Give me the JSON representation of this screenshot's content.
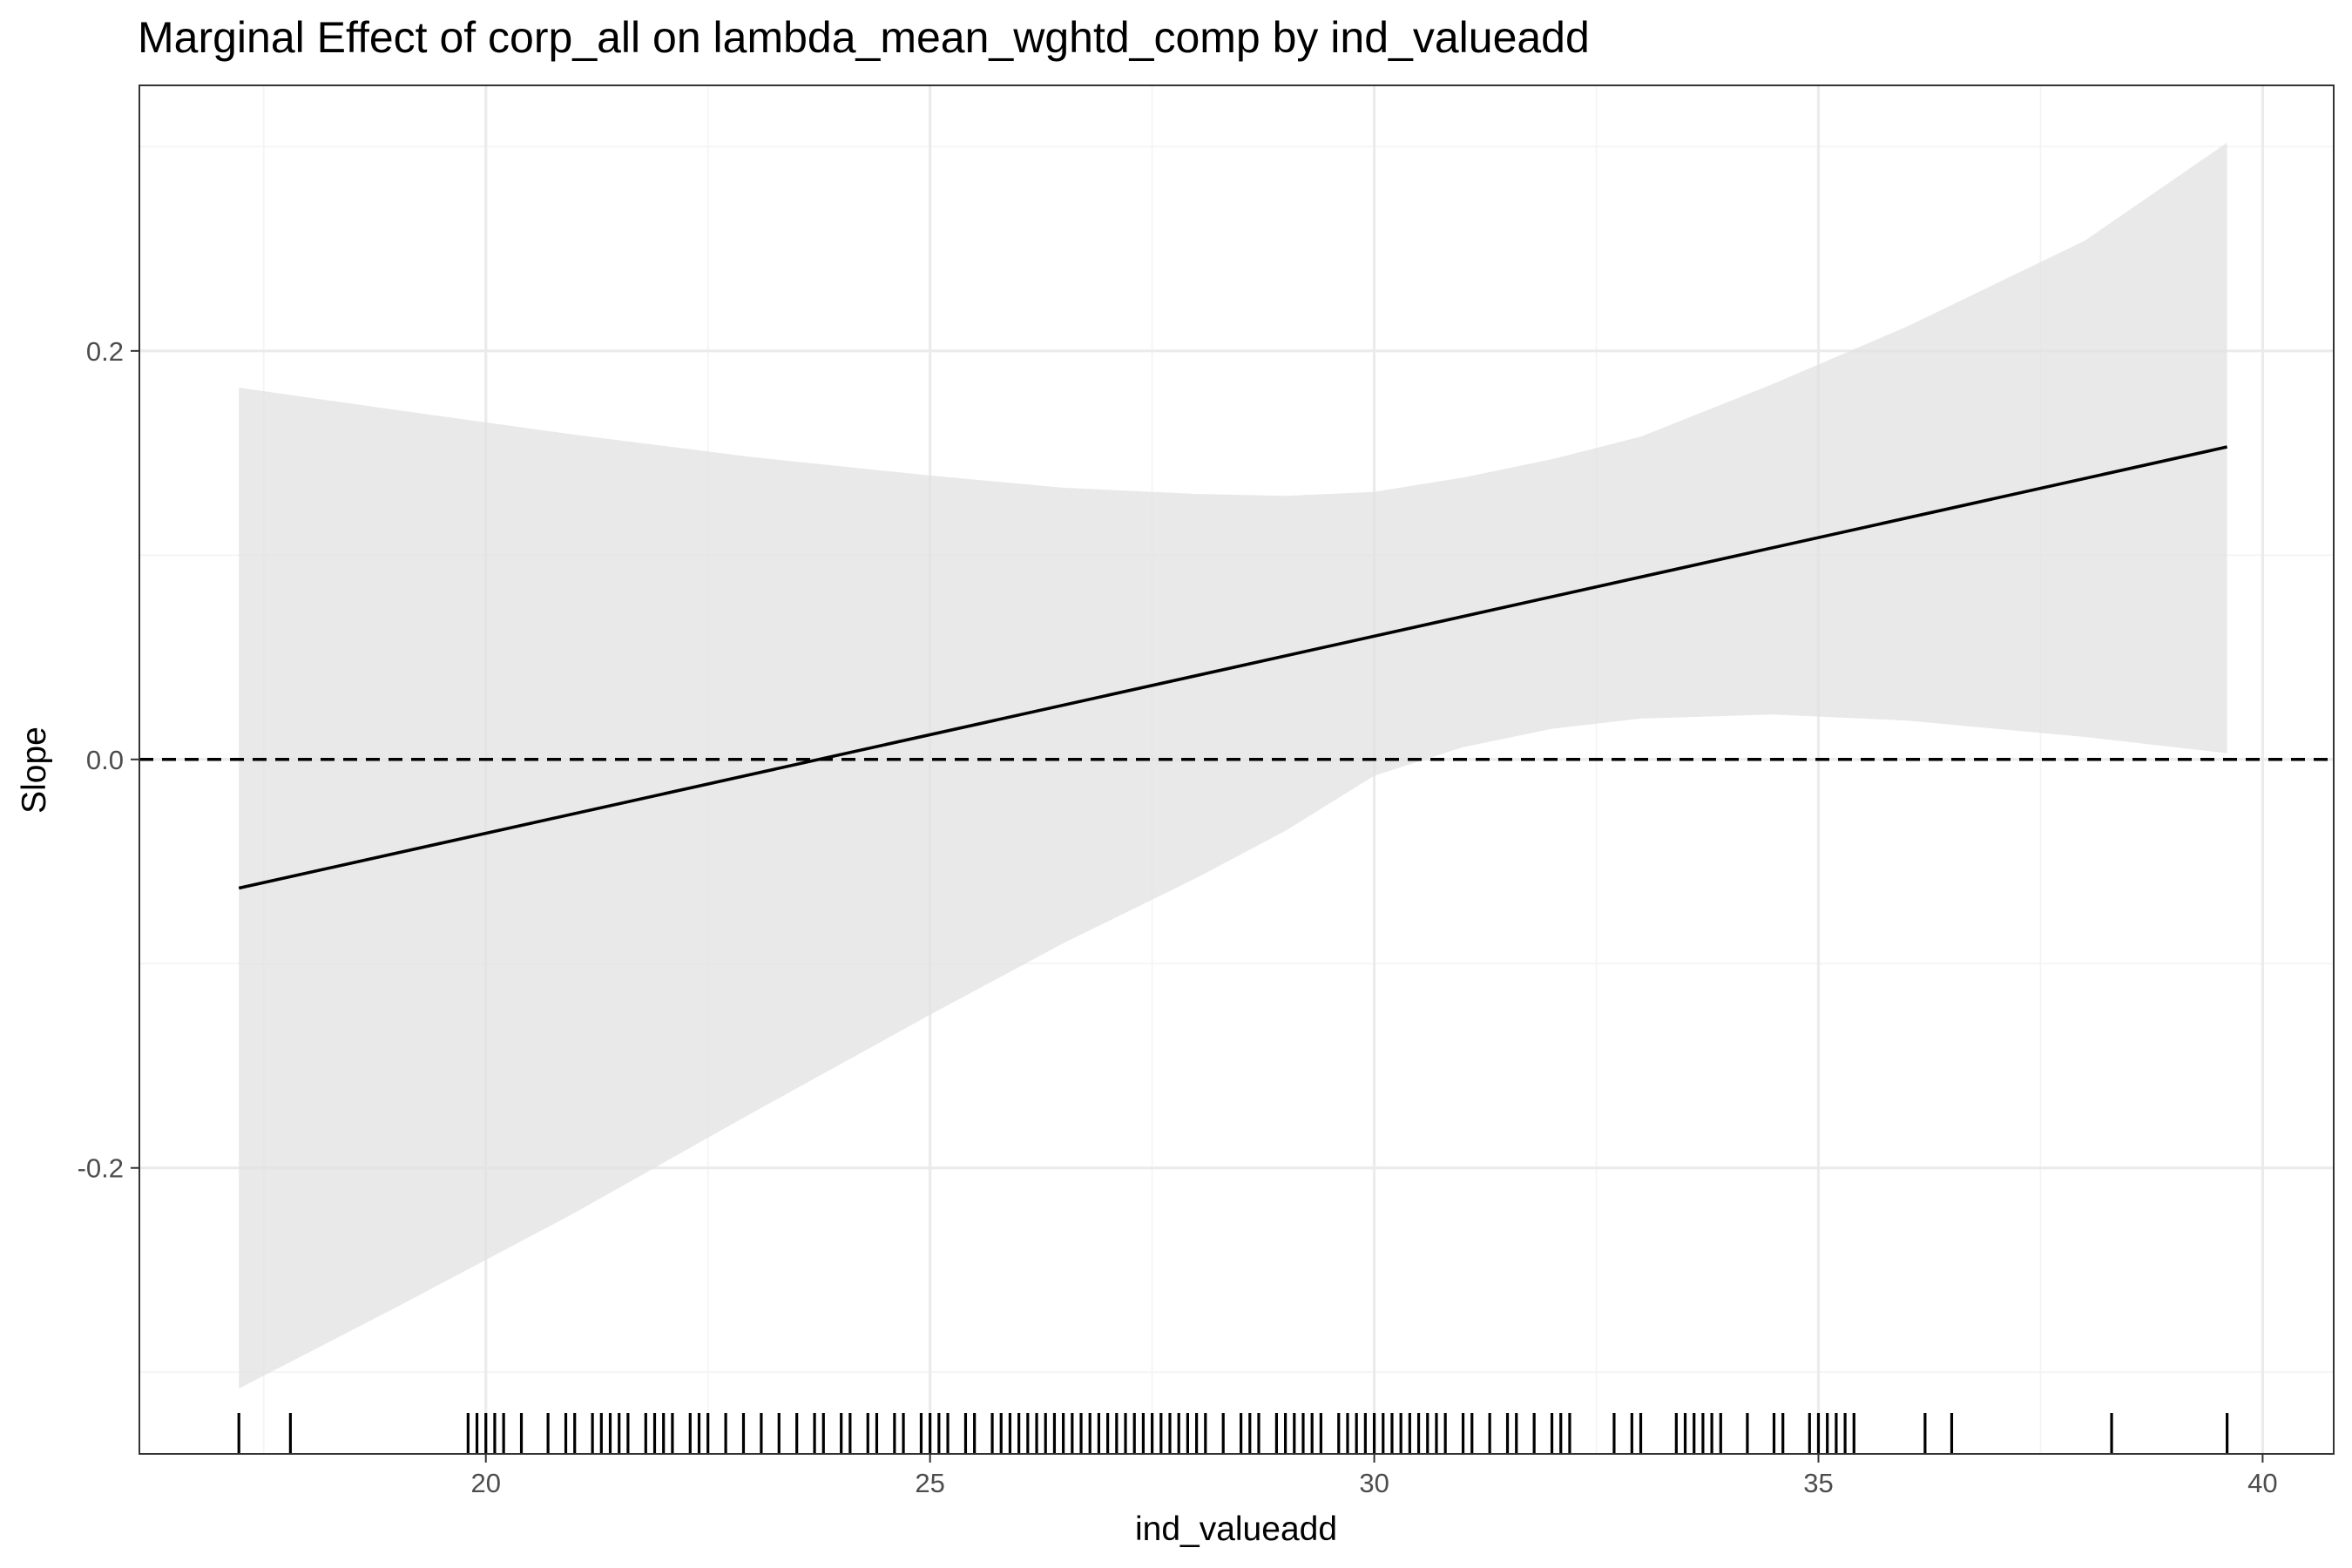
{
  "chart_data": {
    "type": "line",
    "title": "Marginal Effect of corp_all on lambda_mean_wghtd_comp by ind_valueadd",
    "xlabel": "ind_valueadd",
    "ylabel": "Slope",
    "xlim": [
      16.1,
      40.8
    ],
    "ylim": [
      -0.34,
      0.33
    ],
    "x_ticks": [
      20,
      25,
      30,
      35,
      40
    ],
    "x_tick_labels": [
      "20",
      "25",
      "30",
      "35",
      "40"
    ],
    "y_ticks": [
      -0.2,
      0.0,
      0.2
    ],
    "y_tick_labels": [
      "-0.2",
      "0.0",
      "0.2"
    ],
    "grid": true,
    "legend": "none",
    "series": [
      {
        "values": [
          {
            "x": 17.22,
            "y": -0.063
          },
          {
            "x": 39.6,
            "y": 0.153
          }
        ]
      }
    ],
    "confidence_band": [
      {
        "x": 17.22,
        "lower": -0.308,
        "upper": 0.182
      },
      {
        "x": 19.0,
        "lower": -0.268,
        "upper": 0.171
      },
      {
        "x": 21.0,
        "lower": -0.222,
        "upper": 0.159
      },
      {
        "x": 23.0,
        "lower": -0.173,
        "upper": 0.148
      },
      {
        "x": 25.0,
        "lower": -0.125,
        "upper": 0.139
      },
      {
        "x": 26.5,
        "lower": -0.09,
        "upper": 0.133
      },
      {
        "x": 28.0,
        "lower": -0.058,
        "upper": 0.13
      },
      {
        "x": 29.0,
        "lower": -0.035,
        "upper": 0.129
      },
      {
        "x": 30.0,
        "lower": -0.008,
        "upper": 0.131
      },
      {
        "x": 31.0,
        "lower": 0.006,
        "upper": 0.138
      },
      {
        "x": 32.0,
        "lower": 0.015,
        "upper": 0.147
      },
      {
        "x": 33.0,
        "lower": 0.02,
        "upper": 0.158
      },
      {
        "x": 34.5,
        "lower": 0.022,
        "upper": 0.184
      },
      {
        "x": 36.0,
        "lower": 0.019,
        "upper": 0.212
      },
      {
        "x": 38.0,
        "lower": 0.011,
        "upper": 0.254
      },
      {
        "x": 39.6,
        "lower": 0.003,
        "upper": 0.302
      }
    ],
    "reference_line": {
      "y": 0.0,
      "style": "dashed"
    },
    "rug_x": [
      17.22,
      17.8,
      19.8,
      19.9,
      20.0,
      20.1,
      20.2,
      20.4,
      20.7,
      20.9,
      21.0,
      21.2,
      21.3,
      21.4,
      21.5,
      21.6,
      21.8,
      21.9,
      22.0,
      22.1,
      22.3,
      22.4,
      22.5,
      22.7,
      22.9,
      23.1,
      23.3,
      23.5,
      23.7,
      23.8,
      24.0,
      24.1,
      24.3,
      24.4,
      24.6,
      24.7,
      24.9,
      25.0,
      25.1,
      25.2,
      25.4,
      25.5,
      25.7,
      25.8,
      25.9,
      26.0,
      26.1,
      26.2,
      26.3,
      26.4,
      26.5,
      26.6,
      26.7,
      26.8,
      26.9,
      27.0,
      27.1,
      27.2,
      27.3,
      27.4,
      27.5,
      27.6,
      27.7,
      27.8,
      27.9,
      28.0,
      28.1,
      28.3,
      28.5,
      28.6,
      28.7,
      28.9,
      29.0,
      29.1,
      29.2,
      29.3,
      29.4,
      29.6,
      29.7,
      29.8,
      29.9,
      30.0,
      30.1,
      30.2,
      30.3,
      30.4,
      30.5,
      30.6,
      30.7,
      30.8,
      31.0,
      31.1,
      31.3,
      31.5,
      31.6,
      31.8,
      32.0,
      32.1,
      32.2,
      32.7,
      32.9,
      33.0,
      33.4,
      33.5,
      33.6,
      33.7,
      33.8,
      33.9,
      34.2,
      34.5,
      34.6,
      34.9,
      35.0,
      35.1,
      35.2,
      35.3,
      35.4,
      36.2,
      36.5,
      38.3,
      39.6
    ]
  }
}
